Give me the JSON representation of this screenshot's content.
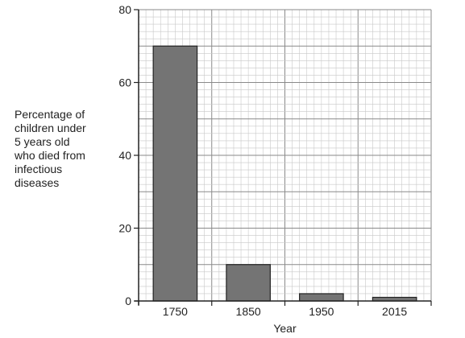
{
  "chart_data": {
    "type": "bar",
    "categories": [
      "1750",
      "1850",
      "1950",
      "2015"
    ],
    "values": [
      70,
      10,
      2,
      1
    ],
    "title": "",
    "xlabel": "Year",
    "ylabel_lines": [
      "Percentage of",
      "children under",
      "5 years old",
      "who died from",
      "infectious",
      "diseases"
    ],
    "ylim": [
      0,
      80
    ],
    "yticks": [
      "0",
      "20",
      "40",
      "60",
      "80"
    ],
    "grid": true,
    "colors": {
      "bar_fill": "#747474",
      "bar_stroke": "#222222",
      "grid_minor": "#c8c8c8",
      "grid_major": "#8a8a8a",
      "axis": "#222222"
    }
  }
}
